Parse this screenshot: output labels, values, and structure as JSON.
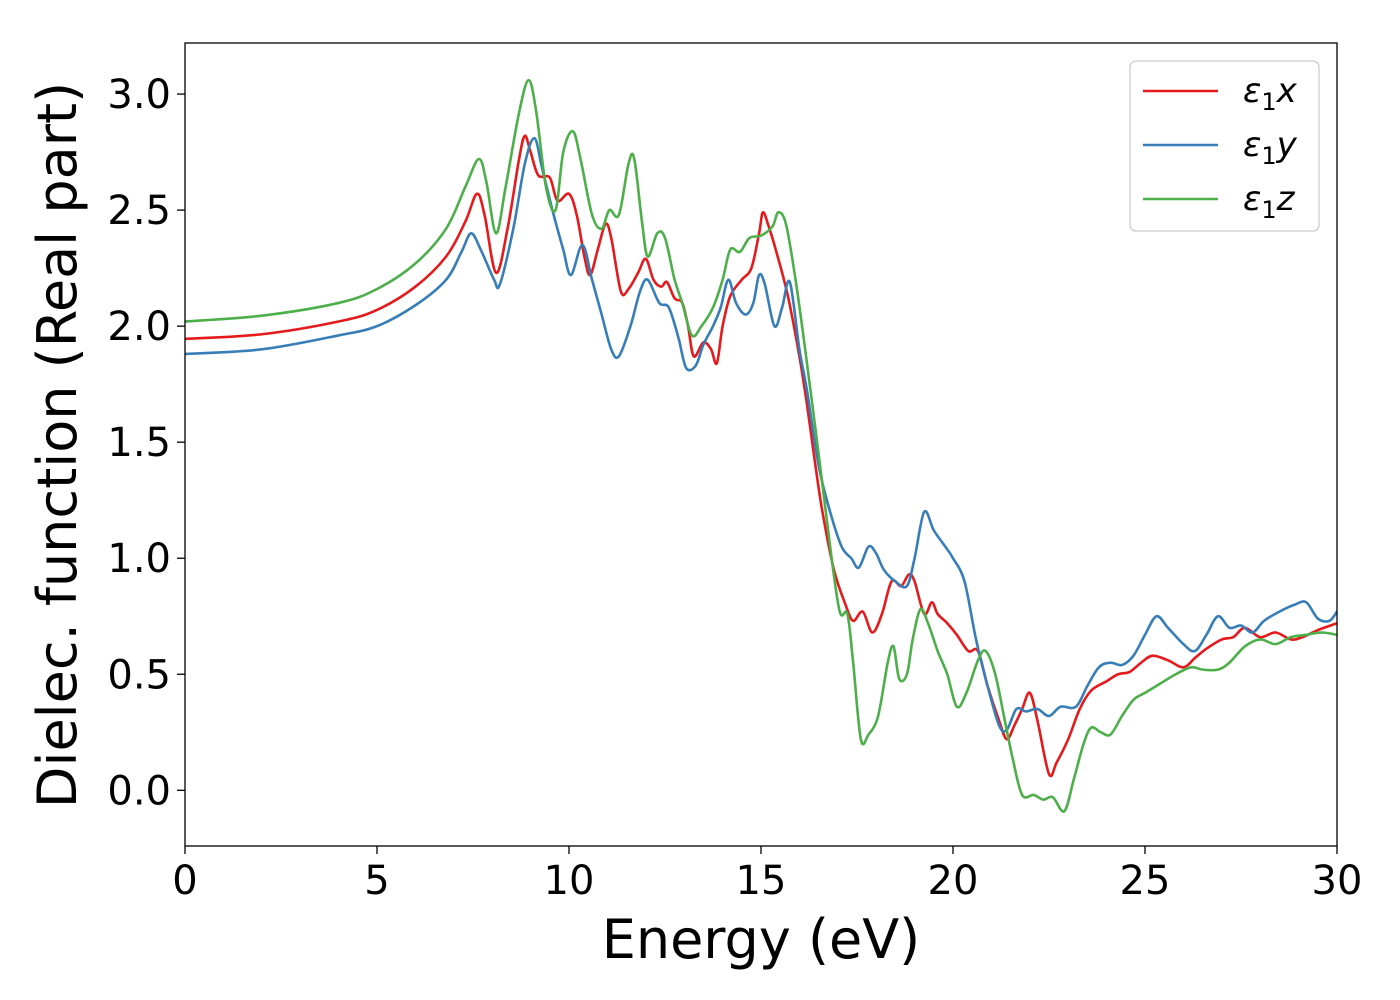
{
  "chart_data": {
    "type": "line",
    "title": "",
    "xlabel": "Energy (eV)",
    "ylabel": "Dielec. function (Real part)",
    "xlim": [
      0,
      30
    ],
    "ylim": [
      -0.24,
      3.22
    ],
    "xticks": [
      0,
      5,
      10,
      15,
      20,
      25,
      30
    ],
    "xtick_labels": [
      "0",
      "5",
      "10",
      "15",
      "20",
      "25",
      "30"
    ],
    "yticks": [
      0.0,
      0.5,
      1.0,
      1.5,
      2.0,
      2.5,
      3.0
    ],
    "ytick_labels": [
      "0.0",
      "0.5",
      "1.0",
      "1.5",
      "2.0",
      "2.5",
      "3.0"
    ],
    "grid": false,
    "legend": {
      "placement": "top-right",
      "entries": [
        {
          "base": "ε",
          "sub": "1",
          "suffix": "x"
        },
        {
          "base": "ε",
          "sub": "1",
          "suffix": "y"
        },
        {
          "base": "ε",
          "sub": "1",
          "suffix": "z"
        }
      ]
    },
    "series": [
      {
        "color": "#e41a1c",
        "points": [
          [
            0,
            1.945
          ],
          [
            2,
            1.965
          ],
          [
            4,
            2.02
          ],
          [
            5,
            2.07
          ],
          [
            6,
            2.17
          ],
          [
            6.8,
            2.3
          ],
          [
            7.3,
            2.45
          ],
          [
            7.6,
            2.57
          ],
          [
            7.8,
            2.48
          ],
          [
            8.1,
            2.23
          ],
          [
            8.4,
            2.42
          ],
          [
            8.7,
            2.72
          ],
          [
            8.85,
            2.82
          ],
          [
            9.0,
            2.75
          ],
          [
            9.2,
            2.65
          ],
          [
            9.5,
            2.64
          ],
          [
            9.7,
            2.54
          ],
          [
            10.0,
            2.57
          ],
          [
            10.2,
            2.48
          ],
          [
            10.4,
            2.3
          ],
          [
            10.55,
            2.22
          ],
          [
            10.75,
            2.33
          ],
          [
            10.95,
            2.44
          ],
          [
            11.1,
            2.38
          ],
          [
            11.35,
            2.15
          ],
          [
            11.55,
            2.16
          ],
          [
            11.8,
            2.23
          ],
          [
            12.0,
            2.29
          ],
          [
            12.2,
            2.2
          ],
          [
            12.4,
            2.17
          ],
          [
            12.55,
            2.19
          ],
          [
            12.75,
            2.12
          ],
          [
            12.95,
            2.1
          ],
          [
            13.1,
            2.0
          ],
          [
            13.25,
            1.87
          ],
          [
            13.5,
            1.93
          ],
          [
            13.7,
            1.9
          ],
          [
            13.85,
            1.84
          ],
          [
            14.0,
            2.0
          ],
          [
            14.2,
            2.13
          ],
          [
            14.5,
            2.2
          ],
          [
            14.75,
            2.25
          ],
          [
            14.95,
            2.4
          ],
          [
            15.05,
            2.49
          ],
          [
            15.2,
            2.43
          ],
          [
            15.4,
            2.32
          ],
          [
            15.7,
            2.13
          ],
          [
            16.0,
            1.87
          ],
          [
            16.2,
            1.66
          ],
          [
            16.4,
            1.42
          ],
          [
            16.6,
            1.2
          ],
          [
            16.9,
            0.95
          ],
          [
            17.2,
            0.8
          ],
          [
            17.4,
            0.73
          ],
          [
            17.65,
            0.77
          ],
          [
            17.9,
            0.68
          ],
          [
            18.15,
            0.76
          ],
          [
            18.4,
            0.9
          ],
          [
            18.65,
            0.88
          ],
          [
            18.85,
            0.93
          ],
          [
            19.0,
            0.9
          ],
          [
            19.25,
            0.76
          ],
          [
            19.45,
            0.81
          ],
          [
            19.6,
            0.76
          ],
          [
            19.85,
            0.72
          ],
          [
            20.1,
            0.67
          ],
          [
            20.4,
            0.6
          ],
          [
            20.65,
            0.6
          ],
          [
            20.9,
            0.45
          ],
          [
            21.2,
            0.3
          ],
          [
            21.4,
            0.22
          ],
          [
            21.6,
            0.28
          ],
          [
            21.8,
            0.35
          ],
          [
            22.0,
            0.42
          ],
          [
            22.2,
            0.3
          ],
          [
            22.5,
            0.07
          ],
          [
            22.7,
            0.12
          ],
          [
            23.0,
            0.22
          ],
          [
            23.3,
            0.35
          ],
          [
            23.6,
            0.43
          ],
          [
            24.0,
            0.47
          ],
          [
            24.3,
            0.5
          ],
          [
            24.6,
            0.51
          ],
          [
            24.9,
            0.55
          ],
          [
            25.2,
            0.58
          ],
          [
            25.6,
            0.56
          ],
          [
            26.0,
            0.53
          ],
          [
            26.3,
            0.57
          ],
          [
            26.6,
            0.61
          ],
          [
            27.0,
            0.65
          ],
          [
            27.3,
            0.66
          ],
          [
            27.6,
            0.7
          ],
          [
            28.0,
            0.66
          ],
          [
            28.4,
            0.68
          ],
          [
            28.8,
            0.65
          ],
          [
            29.1,
            0.66
          ],
          [
            29.5,
            0.69
          ],
          [
            30,
            0.72
          ]
        ]
      },
      {
        "color": "#377eb8",
        "points": [
          [
            0,
            1.88
          ],
          [
            2,
            1.9
          ],
          [
            4,
            1.96
          ],
          [
            5,
            2.0
          ],
          [
            6,
            2.09
          ],
          [
            6.8,
            2.2
          ],
          [
            7.2,
            2.32
          ],
          [
            7.45,
            2.4
          ],
          [
            7.7,
            2.33
          ],
          [
            8.05,
            2.2
          ],
          [
            8.2,
            2.18
          ],
          [
            8.55,
            2.42
          ],
          [
            8.85,
            2.7
          ],
          [
            9.1,
            2.81
          ],
          [
            9.3,
            2.68
          ],
          [
            9.6,
            2.48
          ],
          [
            9.85,
            2.33
          ],
          [
            10.05,
            2.22
          ],
          [
            10.35,
            2.35
          ],
          [
            10.6,
            2.2
          ],
          [
            10.85,
            2.05
          ],
          [
            11.1,
            1.9
          ],
          [
            11.3,
            1.87
          ],
          [
            11.6,
            2.0
          ],
          [
            11.85,
            2.15
          ],
          [
            12.05,
            2.2
          ],
          [
            12.35,
            2.1
          ],
          [
            12.6,
            2.08
          ],
          [
            12.85,
            1.95
          ],
          [
            13.05,
            1.82
          ],
          [
            13.3,
            1.83
          ],
          [
            13.5,
            1.92
          ],
          [
            13.75,
            2.0
          ],
          [
            13.95,
            2.08
          ],
          [
            14.15,
            2.2
          ],
          [
            14.35,
            2.1
          ],
          [
            14.6,
            2.05
          ],
          [
            14.8,
            2.1
          ],
          [
            14.95,
            2.22
          ],
          [
            15.1,
            2.18
          ],
          [
            15.35,
            2.0
          ],
          [
            15.55,
            2.08
          ],
          [
            15.75,
            2.19
          ],
          [
            16.0,
            1.9
          ],
          [
            16.2,
            1.72
          ],
          [
            16.5,
            1.4
          ],
          [
            16.8,
            1.2
          ],
          [
            17.1,
            1.05
          ],
          [
            17.35,
            1.0
          ],
          [
            17.55,
            0.96
          ],
          [
            17.8,
            1.05
          ],
          [
            18.0,
            1.02
          ],
          [
            18.2,
            0.95
          ],
          [
            18.5,
            0.9
          ],
          [
            18.8,
            0.88
          ],
          [
            19.0,
            1.0
          ],
          [
            19.25,
            1.2
          ],
          [
            19.5,
            1.12
          ],
          [
            19.8,
            1.05
          ],
          [
            20.0,
            1.0
          ],
          [
            20.3,
            0.9
          ],
          [
            20.6,
            0.65
          ],
          [
            20.9,
            0.45
          ],
          [
            21.2,
            0.28
          ],
          [
            21.4,
            0.26
          ],
          [
            21.65,
            0.35
          ],
          [
            21.9,
            0.34
          ],
          [
            22.2,
            0.35
          ],
          [
            22.5,
            0.32
          ],
          [
            22.8,
            0.36
          ],
          [
            23.2,
            0.36
          ],
          [
            23.5,
            0.45
          ],
          [
            23.8,
            0.53
          ],
          [
            24.1,
            0.55
          ],
          [
            24.4,
            0.54
          ],
          [
            24.7,
            0.58
          ],
          [
            25.0,
            0.67
          ],
          [
            25.3,
            0.75
          ],
          [
            25.6,
            0.7
          ],
          [
            26.0,
            0.63
          ],
          [
            26.3,
            0.6
          ],
          [
            26.6,
            0.67
          ],
          [
            26.9,
            0.75
          ],
          [
            27.2,
            0.7
          ],
          [
            27.5,
            0.71
          ],
          [
            27.8,
            0.68
          ],
          [
            28.1,
            0.73
          ],
          [
            28.5,
            0.77
          ],
          [
            28.9,
            0.8
          ],
          [
            29.2,
            0.81
          ],
          [
            29.5,
            0.74
          ],
          [
            29.8,
            0.73
          ],
          [
            30,
            0.77
          ]
        ]
      },
      {
        "color": "#4daf4a",
        "points": [
          [
            0,
            2.02
          ],
          [
            2,
            2.045
          ],
          [
            4,
            2.1
          ],
          [
            5,
            2.16
          ],
          [
            6,
            2.27
          ],
          [
            6.8,
            2.42
          ],
          [
            7.3,
            2.6
          ],
          [
            7.65,
            2.72
          ],
          [
            7.85,
            2.62
          ],
          [
            8.1,
            2.4
          ],
          [
            8.35,
            2.6
          ],
          [
            8.7,
            2.92
          ],
          [
            8.95,
            3.06
          ],
          [
            9.15,
            2.92
          ],
          [
            9.4,
            2.6
          ],
          [
            9.65,
            2.5
          ],
          [
            9.85,
            2.75
          ],
          [
            10.1,
            2.84
          ],
          [
            10.3,
            2.72
          ],
          [
            10.6,
            2.48
          ],
          [
            10.85,
            2.42
          ],
          [
            11.05,
            2.5
          ],
          [
            11.3,
            2.48
          ],
          [
            11.55,
            2.7
          ],
          [
            11.7,
            2.72
          ],
          [
            11.9,
            2.45
          ],
          [
            12.05,
            2.3
          ],
          [
            12.3,
            2.4
          ],
          [
            12.5,
            2.38
          ],
          [
            12.75,
            2.2
          ],
          [
            12.95,
            2.1
          ],
          [
            13.2,
            1.96
          ],
          [
            13.45,
            2.0
          ],
          [
            13.75,
            2.08
          ],
          [
            14.0,
            2.2
          ],
          [
            14.2,
            2.33
          ],
          [
            14.45,
            2.32
          ],
          [
            14.7,
            2.38
          ],
          [
            15.0,
            2.39
          ],
          [
            15.3,
            2.43
          ],
          [
            15.45,
            2.49
          ],
          [
            15.65,
            2.44
          ],
          [
            15.9,
            2.2
          ],
          [
            16.15,
            1.9
          ],
          [
            16.5,
            1.45
          ],
          [
            16.8,
            1.05
          ],
          [
            17.05,
            0.77
          ],
          [
            17.25,
            0.76
          ],
          [
            17.4,
            0.55
          ],
          [
            17.6,
            0.22
          ],
          [
            17.8,
            0.24
          ],
          [
            18.05,
            0.32
          ],
          [
            18.3,
            0.55
          ],
          [
            18.45,
            0.62
          ],
          [
            18.6,
            0.48
          ],
          [
            18.8,
            0.5
          ],
          [
            18.95,
            0.65
          ],
          [
            19.15,
            0.78
          ],
          [
            19.35,
            0.72
          ],
          [
            19.6,
            0.6
          ],
          [
            19.85,
            0.5
          ],
          [
            20.1,
            0.36
          ],
          [
            20.35,
            0.42
          ],
          [
            20.65,
            0.56
          ],
          [
            20.85,
            0.6
          ],
          [
            21.1,
            0.5
          ],
          [
            21.35,
            0.3
          ],
          [
            21.55,
            0.14
          ],
          [
            21.8,
            -0.02
          ],
          [
            22.1,
            -0.02
          ],
          [
            22.35,
            -0.04
          ],
          [
            22.6,
            -0.03
          ],
          [
            22.9,
            -0.09
          ],
          [
            23.15,
            0.05
          ],
          [
            23.4,
            0.2
          ],
          [
            23.6,
            0.27
          ],
          [
            23.85,
            0.25
          ],
          [
            24.1,
            0.24
          ],
          [
            24.4,
            0.32
          ],
          [
            24.7,
            0.39
          ],
          [
            25.0,
            0.42
          ],
          [
            25.4,
            0.46
          ],
          [
            25.8,
            0.5
          ],
          [
            26.2,
            0.53
          ],
          [
            26.5,
            0.52
          ],
          [
            26.9,
            0.52
          ],
          [
            27.2,
            0.55
          ],
          [
            27.6,
            0.62
          ],
          [
            28.0,
            0.65
          ],
          [
            28.4,
            0.63
          ],
          [
            28.8,
            0.66
          ],
          [
            29.2,
            0.67
          ],
          [
            29.6,
            0.68
          ],
          [
            30,
            0.67
          ]
        ]
      }
    ]
  }
}
